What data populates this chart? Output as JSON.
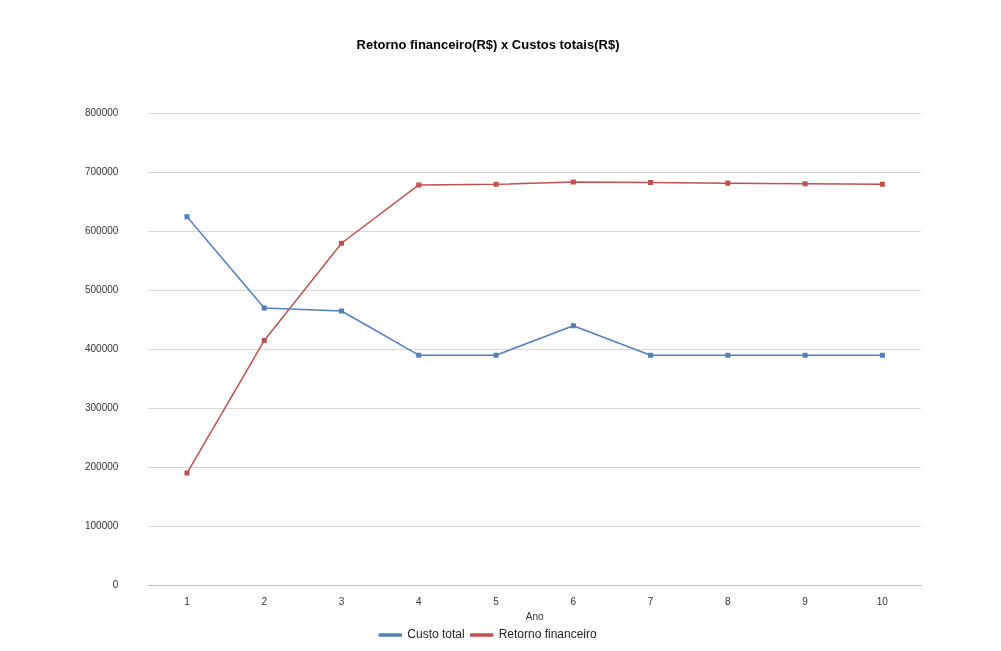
{
  "chart_data": {
    "type": "line",
    "title": "Retorno financeiro(R$) x Custos totais(R$)",
    "xlabel": "Ano",
    "categories": [
      "1",
      "2",
      "3",
      "4",
      "5",
      "6",
      "7",
      "8",
      "9",
      "10"
    ],
    "series": [
      {
        "name": "Custo total",
        "color": "#4f81bd",
        "values": [
          625000,
          470000,
          465000,
          390000,
          390000,
          440000,
          390000,
          390000,
          390000,
          390000
        ]
      },
      {
        "name": "Retorno financeiro",
        "color": "#c0504d",
        "values": [
          190000,
          415000,
          580000,
          679000,
          680000,
          684000,
          683000,
          682000,
          681000,
          680000
        ]
      }
    ],
    "ylim": [
      0,
      800000
    ],
    "yticks": [
      0,
      100000,
      200000,
      300000,
      400000,
      500000,
      600000,
      700000,
      800000
    ],
    "grid": "y",
    "legend": "bottom",
    "marker": "square",
    "line_style": "solid"
  }
}
